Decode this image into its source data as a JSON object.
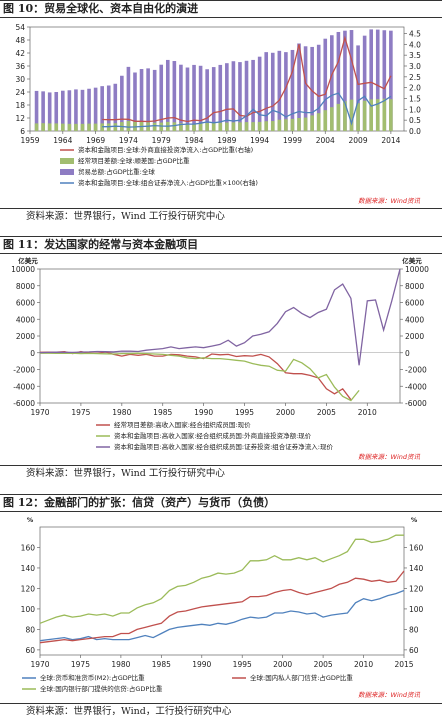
{
  "figures": [
    {
      "title": "图 10：贸易全球化、资本自由化的演进",
      "source": "资料来源：世界银行，Wind 工行投行研究中心"
    },
    {
      "title": "图 11：发达国家的经常与资本金融项目",
      "source": "资料来源：世界银行，Wind 工行投行研究中心"
    },
    {
      "title": "图 12：金融部门的扩张：信贷（资产）与货币（负债）",
      "source": "资料来源：世界银行，Wind，工行投行研究中心"
    }
  ],
  "chart_data": [
    {
      "type": "bar",
      "x_ticks": [
        "1959",
        "1964",
        "1969",
        "1974",
        "1979",
        "1984",
        "1989",
        "1994",
        "1999",
        "2004",
        "2009",
        "2014"
      ],
      "y_left_ticks": [
        "6",
        "12",
        "18",
        "24",
        "30",
        "36",
        "42",
        "48",
        "54"
      ],
      "y_right_ticks": [
        "0.0",
        "0.5",
        "1.0",
        "1.5",
        "2.0",
        "2.5",
        "3.0",
        "3.5",
        "4.0",
        "4.5"
      ],
      "ylim_left": [
        6,
        54
      ],
      "ylim_right": [
        0,
        4.8
      ],
      "watermark": "数据来源：Wind资讯",
      "x": [
        1960,
        1961,
        1962,
        1963,
        1964,
        1965,
        1966,
        1967,
        1968,
        1969,
        1970,
        1971,
        1972,
        1973,
        1974,
        1975,
        1976,
        1977,
        1978,
        1979,
        1980,
        1981,
        1982,
        1983,
        1984,
        1985,
        1986,
        1987,
        1988,
        1989,
        1990,
        1991,
        1992,
        1993,
        1994,
        1995,
        1996,
        1997,
        1998,
        1999,
        2000,
        2001,
        2002,
        2003,
        2004,
        2005,
        2006,
        2007,
        2008,
        2009,
        2010,
        2011,
        2012,
        2013,
        2014
      ],
      "series": [
        {
          "name": "贸易总额:占GDP比重:全球",
          "kind": "bar",
          "axis": "left",
          "color": "#8e7cc3",
          "values": [
            24.5,
            24.3,
            23.8,
            24.0,
            24.6,
            24.8,
            25.2,
            25.0,
            25.5,
            26.0,
            26.7,
            27.0,
            27.8,
            31.5,
            35.6,
            33.0,
            34.6,
            34.9,
            34.2,
            36.6,
            38.8,
            38.3,
            36.6,
            35.3,
            36.5,
            36.1,
            34.5,
            35.5,
            36.5,
            37.3,
            38.2,
            37.8,
            38.4,
            38.8,
            40.3,
            42.4,
            42.1,
            43.0,
            42.4,
            43.4,
            46.4,
            45.1,
            44.8,
            45.8,
            48.6,
            50.2,
            51.7,
            52.3,
            52.6,
            45.5,
            50.0,
            52.9,
            52.8,
            52.5,
            52.3
          ]
        },
        {
          "name": "经常项目差额:全球:顺差国:占GDP比重",
          "kind": "bar",
          "axis": "right",
          "color": "#a2bd70",
          "values": [
            0.35,
            0.36,
            0.35,
            0.35,
            0.34,
            0.33,
            0.33,
            0.33,
            0.34,
            0.34,
            0.35,
            0.35,
            0.36,
            0.41,
            0.46,
            0.42,
            0.42,
            0.4,
            0.38,
            0.39,
            0.42,
            0.4,
            0.36,
            0.34,
            0.34,
            0.36,
            0.37,
            0.38,
            0.38,
            0.39,
            0.4,
            0.4,
            0.41,
            0.41,
            0.42,
            0.45,
            0.46,
            0.52,
            0.54,
            0.56,
            0.6,
            0.62,
            0.72,
            0.82,
            0.96,
            1.1,
            1.25,
            1.37,
            1.45,
            1.28,
            1.4,
            1.46,
            1.47,
            1.49,
            1.47
          ]
        },
        {
          "name": "资本和金融项目:全球:外商直接投资净流入:占GDP比重(右轴)",
          "kind": "line",
          "axis": "right",
          "color": "#c0504d",
          "values": [
            null,
            null,
            null,
            null,
            null,
            null,
            null,
            null,
            null,
            null,
            0.53,
            0.52,
            0.52,
            0.55,
            0.54,
            0.45,
            0.45,
            0.44,
            0.46,
            0.53,
            0.6,
            0.62,
            0.5,
            0.44,
            0.5,
            0.48,
            0.6,
            0.85,
            0.9,
            1.0,
            1.02,
            0.72,
            0.68,
            0.85,
            0.9,
            1.05,
            1.15,
            1.42,
            2.0,
            2.75,
            4.0,
            2.2,
            1.85,
            1.6,
            1.7,
            2.6,
            3.2,
            4.3,
            3.3,
            2.15,
            2.2,
            2.25,
            2.1,
            1.95,
            2.55
          ]
        },
        {
          "name": "资本和金融项目:全球:组合证券净流入:占GDP比重×100(右轴)",
          "kind": "line",
          "axis": "right",
          "color": "#4f81bd",
          "values": [
            null,
            null,
            null,
            null,
            null,
            null,
            null,
            null,
            null,
            null,
            0.2,
            0.2,
            0.22,
            0.21,
            0.18,
            0.19,
            0.21,
            0.22,
            0.25,
            0.23,
            0.22,
            0.25,
            0.3,
            0.32,
            0.32,
            0.36,
            0.42,
            0.38,
            0.42,
            0.5,
            0.46,
            0.5,
            0.7,
            1.0,
            0.75,
            0.7,
            0.95,
            0.85,
            0.65,
            0.8,
            0.9,
            0.85,
            0.85,
            1.05,
            1.45,
            1.65,
            1.75,
            1.3,
            0.35,
            1.4,
            1.6,
            1.15,
            1.25,
            1.4,
            1.6
          ]
        }
      ]
    },
    {
      "type": "line",
      "x_ticks": [
        "1970",
        "1975",
        "1980",
        "1985",
        "1990",
        "1995",
        "2000",
        "2005",
        "2010"
      ],
      "y_left_ticks": [
        "-6000",
        "-4000",
        "-2000",
        "0",
        "2000",
        "4000",
        "6000",
        "8000",
        "10000"
      ],
      "y_right_ticks": [
        "-6000",
        "-4000",
        "-2000",
        "0",
        "2000",
        "4000",
        "6000",
        "8000",
        "10000"
      ],
      "unit_left": "亿美元",
      "unit_right": "亿美元",
      "ylim_left": [
        -6000,
        10000
      ],
      "ylim_right": [
        -6000,
        10000
      ],
      "watermark": "数据来源：Wind资讯",
      "x": [
        1970,
        1971,
        1972,
        1973,
        1974,
        1975,
        1976,
        1977,
        1978,
        1979,
        1980,
        1981,
        1982,
        1983,
        1984,
        1985,
        1986,
        1987,
        1988,
        1989,
        1990,
        1991,
        1992,
        1993,
        1994,
        1995,
        1996,
        1997,
        1998,
        1999,
        2000,
        2001,
        2002,
        2003,
        2004,
        2005,
        2006,
        2007,
        2008,
        2009,
        2010,
        2011,
        2012,
        2013,
        2014
      ],
      "series": [
        {
          "name": "经常项目差额:高收入国家:经合组织成员国:现价",
          "color": "#c0504d",
          "values": [
            50,
            80,
            60,
            120,
            -100,
            150,
            -50,
            -80,
            100,
            -200,
            -400,
            -200,
            -300,
            -200,
            -400,
            -400,
            -200,
            -250,
            -400,
            -500,
            -700,
            -150,
            -250,
            -200,
            -450,
            -350,
            -400,
            -200,
            -500,
            -1300,
            -2400,
            -2500,
            -2500,
            -2700,
            -3000,
            -4300,
            -4900,
            -4300,
            -5600,
            null,
            null,
            null,
            null,
            null,
            null
          ]
        },
        {
          "name": "资本和金融项目:高收入国家:经合组织成员国:外商直接投资净额:现价",
          "color": "#9bbb59",
          "values": [
            -50,
            -50,
            -60,
            -70,
            -50,
            -100,
            -80,
            -100,
            -120,
            -150,
            -100,
            -100,
            -50,
            -100,
            -150,
            -200,
            -300,
            -400,
            -600,
            -700,
            -600,
            -700,
            -700,
            -800,
            -900,
            -1000,
            -1300,
            -1500,
            -1600,
            -2100,
            -2200,
            -800,
            -1200,
            -1900,
            -3000,
            -2600,
            -4100,
            -5200,
            -5700,
            -4500,
            null,
            null,
            null,
            null,
            null
          ]
        },
        {
          "name": "资本和金融项目:高收入国家:经合组织成员国:证券投资:组合证券净流入:现价",
          "color": "#8064a2",
          "values": [
            20,
            40,
            60,
            50,
            40,
            80,
            100,
            150,
            120,
            100,
            200,
            180,
            150,
            300,
            400,
            500,
            700,
            500,
            600,
            700,
            600,
            800,
            1000,
            1500,
            800,
            1200,
            2000,
            2200,
            2500,
            3500,
            4900,
            5400,
            4700,
            4200,
            4800,
            5200,
            7500,
            8200,
            6500,
            -1500,
            6200,
            6300,
            2700,
            6200,
            10000
          ]
        }
      ]
    },
    {
      "type": "line",
      "x_ticks": [
        "1970",
        "1975",
        "1980",
        "1985",
        "1990",
        "1995",
        "2000",
        "2005",
        "2010",
        "2015"
      ],
      "y_left_ticks": [
        "60",
        "80",
        "100",
        "120",
        "140",
        "160"
      ],
      "y_right_ticks": [
        "60",
        "80",
        "100",
        "120",
        "140",
        "160"
      ],
      "unit_left": "%",
      "unit_right": "%",
      "ylim_left": [
        55,
        180
      ],
      "ylim_right": [
        55,
        180
      ],
      "watermark": "数据来源：Wind资讯",
      "x": [
        1970,
        1971,
        1972,
        1973,
        1974,
        1975,
        1976,
        1977,
        1978,
        1979,
        1980,
        1981,
        1982,
        1983,
        1984,
        1985,
        1986,
        1987,
        1988,
        1989,
        1990,
        1991,
        1992,
        1993,
        1994,
        1995,
        1996,
        1997,
        1998,
        1999,
        2000,
        2001,
        2002,
        2003,
        2004,
        2005,
        2006,
        2007,
        2008,
        2009,
        2010,
        2011,
        2012,
        2013,
        2014,
        2015
      ],
      "series": [
        {
          "name": "全球:货币和准货币(M2):占GDP比重",
          "color": "#4f81bd",
          "values": [
            69,
            70,
            71,
            72,
            70,
            71,
            73,
            70,
            71,
            70,
            70,
            70,
            72,
            74,
            72,
            76,
            80,
            82,
            83,
            84,
            85,
            84,
            86,
            85,
            87,
            90,
            92,
            91,
            92,
            96,
            96,
            98,
            97,
            95,
            96,
            92,
            94,
            95,
            96,
            106,
            110,
            108,
            110,
            113,
            115,
            118
          ]
        },
        {
          "name": "全球:国内私人部门信贷:占GDP比重",
          "color": "#c0504d",
          "values": [
            67,
            68,
            69,
            70,
            69,
            70,
            71,
            72,
            73,
            73,
            76,
            76,
            80,
            82,
            84,
            86,
            93,
            97,
            98,
            100,
            102,
            103,
            104,
            105,
            106,
            107,
            112,
            112,
            113,
            116,
            118,
            119,
            116,
            114,
            116,
            118,
            120,
            124,
            126,
            130,
            129,
            127,
            128,
            126,
            127,
            137
          ]
        },
        {
          "name": "全球:国内银行部门提供的信贷:占GDP比重",
          "color": "#9bbb59",
          "values": [
            86,
            89,
            92,
            94,
            92,
            93,
            95,
            94,
            95,
            93,
            96,
            96,
            101,
            104,
            106,
            110,
            118,
            122,
            123,
            126,
            130,
            132,
            135,
            134,
            135,
            138,
            147,
            147,
            148,
            152,
            148,
            148,
            150,
            148,
            150,
            146,
            149,
            152,
            156,
            168,
            168,
            165,
            166,
            168,
            172,
            172
          ]
        }
      ]
    }
  ]
}
